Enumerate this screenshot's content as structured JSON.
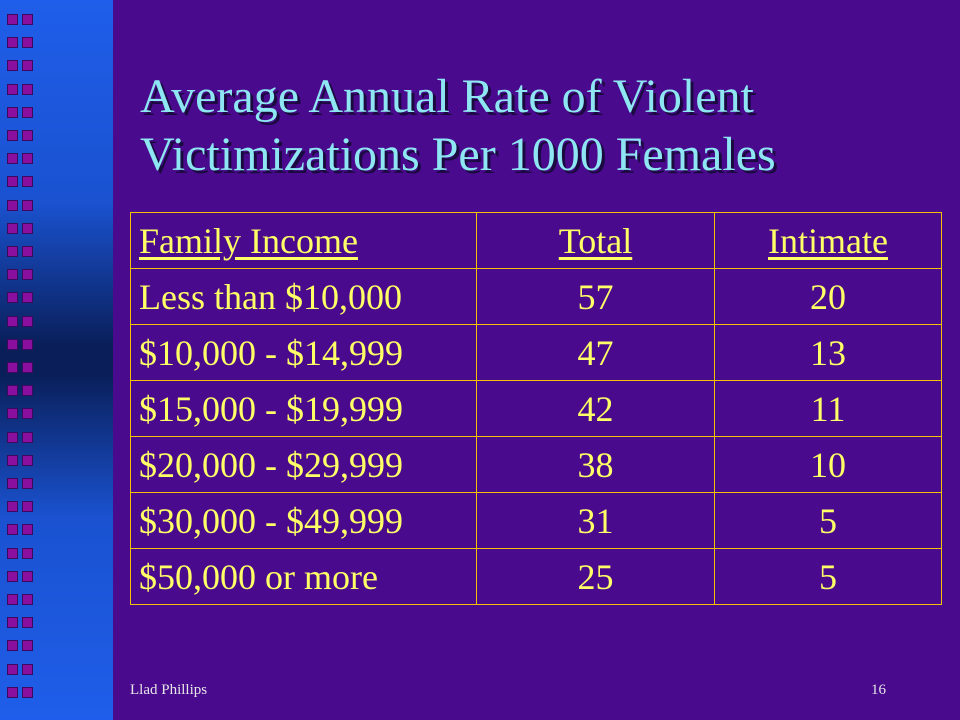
{
  "title_line1": "Average Annual Rate of Violent",
  "title_line2": "Victimizations Per 1000 Females",
  "table": {
    "headers": {
      "income": "Family Income",
      "total": "Total",
      "intimate": "Intimate"
    },
    "rows": [
      {
        "income": "Less than $10,000",
        "total": "57",
        "intimate": "20"
      },
      {
        "income": "$10,000 - $14,999",
        "total": "47",
        "intimate": "13"
      },
      {
        "income": "$15,000 - $19,999",
        "total": "42",
        "intimate": "11"
      },
      {
        "income": "$20,000 - $29,999",
        "total": "38",
        "intimate": "10"
      },
      {
        "income": "$30,000 - $49,999",
        "total": "31",
        "intimate": "5"
      },
      {
        "income": "$50,000 or more",
        "total": "25",
        "intimate": "5"
      }
    ]
  },
  "footer": {
    "author": "Llad Phillips",
    "page": "16"
  },
  "colors": {
    "background": "#4a0a8e",
    "title": "#8de6f2",
    "table_text": "#ffff66",
    "table_border": "#f2c200",
    "bullet_square": "#8a0f9e"
  }
}
